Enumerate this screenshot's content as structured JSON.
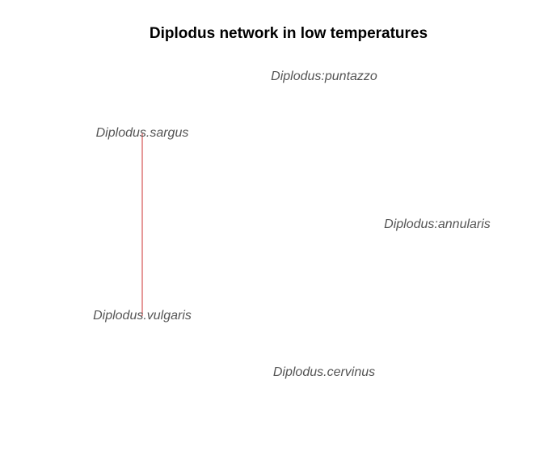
{
  "title": "Diplodus network in low temperatures",
  "colors": {
    "edge": "#cd3333",
    "label": "#555555",
    "title": "#000000",
    "background": "#ffffff"
  },
  "nodes": [
    {
      "id": "puntazzo",
      "label": "Diplodus:puntazzo"
    },
    {
      "id": "sargus",
      "label": "Diplodus.sargus"
    },
    {
      "id": "annularis",
      "label": "Diplodus:annularis"
    },
    {
      "id": "vulgaris",
      "label": "Diplodus.vulgaris"
    },
    {
      "id": "cervinus",
      "label": "Diplodus.cervinus"
    }
  ],
  "edges": [
    {
      "source": "sargus",
      "target": "vulgaris"
    }
  ]
}
